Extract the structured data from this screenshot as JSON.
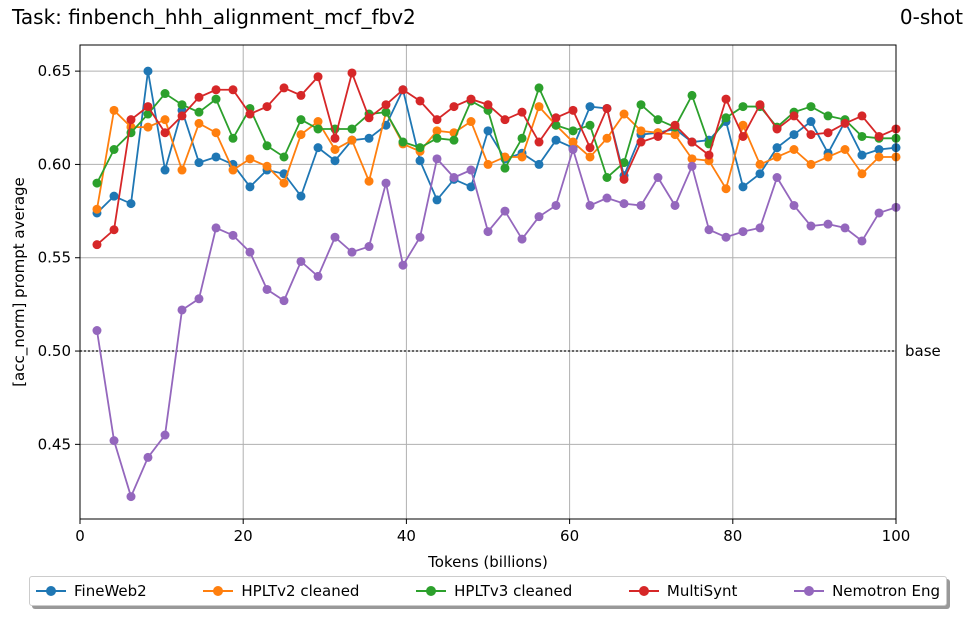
{
  "header": {
    "title": "Task: finbench_hhh_alignment_mcf_fbv2",
    "shot": "0-shot"
  },
  "chart_data": {
    "type": "line",
    "title": "Task: finbench_hhh_alignment_mcf_fbv2",
    "subtitle": "0-shot",
    "xlabel": "Tokens (billions)",
    "ylabel": "[acc_norm] prompt average",
    "xlim": [
      0,
      100
    ],
    "ylim": [
      0.41,
      0.664
    ],
    "xticks": [
      0,
      20,
      40,
      60,
      80,
      100
    ],
    "yticks": [
      0.45,
      0.5,
      0.55,
      0.6,
      0.65
    ],
    "grid": true,
    "legend_position": "bottom",
    "baseline": {
      "value": 0.5,
      "label": "base",
      "style": "dotted"
    },
    "x": [
      2.08,
      4.17,
      6.25,
      8.33,
      10.42,
      12.5,
      14.58,
      16.67,
      18.75,
      20.83,
      22.92,
      25.0,
      27.08,
      29.17,
      31.25,
      33.33,
      35.42,
      37.5,
      39.58,
      41.67,
      43.75,
      45.83,
      47.92,
      50.0,
      52.08,
      54.17,
      56.25,
      58.33,
      60.42,
      62.5,
      64.58,
      66.67,
      68.75,
      70.83,
      72.92,
      75.0,
      77.08,
      79.17,
      81.25,
      83.33,
      85.42,
      87.5,
      89.58,
      91.67,
      93.75,
      95.83,
      97.92,
      100.0
    ],
    "series": [
      {
        "name": "FineWeb2",
        "color": "#1f77b4",
        "values": [
          0.574,
          0.583,
          0.579,
          0.65,
          0.597,
          0.629,
          0.601,
          0.604,
          0.6,
          0.588,
          0.597,
          0.595,
          0.583,
          0.609,
          0.602,
          0.613,
          0.614,
          0.621,
          0.64,
          0.602,
          0.581,
          0.592,
          0.588,
          0.618,
          0.603,
          0.606,
          0.6,
          0.613,
          0.609,
          0.631,
          0.63,
          0.594,
          0.616,
          0.617,
          0.619,
          0.612,
          0.613,
          0.623,
          0.588,
          0.595,
          0.609,
          0.616,
          0.623,
          0.606,
          0.623,
          0.605,
          0.608,
          0.609
        ]
      },
      {
        "name": "HPLTv2 cleaned",
        "color": "#ff7f0e",
        "values": [
          0.576,
          0.629,
          0.62,
          0.62,
          0.624,
          0.597,
          0.622,
          0.617,
          0.597,
          0.603,
          0.599,
          0.59,
          0.616,
          0.623,
          0.608,
          0.613,
          0.591,
          0.628,
          0.611,
          0.607,
          0.618,
          0.617,
          0.623,
          0.6,
          0.604,
          0.604,
          0.631,
          0.621,
          0.612,
          0.604,
          0.614,
          0.627,
          0.618,
          0.617,
          0.616,
          0.603,
          0.602,
          0.587,
          0.621,
          0.6,
          0.604,
          0.608,
          0.6,
          0.604,
          0.608,
          0.595,
          0.604,
          0.604
        ]
      },
      {
        "name": "HPLTv3 cleaned",
        "color": "#2ca02c",
        "values": [
          0.59,
          0.608,
          0.617,
          0.627,
          0.638,
          0.632,
          0.628,
          0.635,
          0.614,
          0.63,
          0.61,
          0.604,
          0.624,
          0.619,
          0.619,
          0.619,
          0.627,
          0.628,
          0.612,
          0.609,
          0.614,
          0.613,
          0.634,
          0.629,
          0.598,
          0.614,
          0.641,
          0.621,
          0.618,
          0.621,
          0.593,
          0.601,
          0.632,
          0.624,
          0.62,
          0.637,
          0.611,
          0.625,
          0.631,
          0.631,
          0.62,
          0.628,
          0.631,
          0.626,
          0.624,
          0.615,
          0.614,
          0.614
        ]
      },
      {
        "name": "MultiSynt",
        "color": "#d62728",
        "values": [
          0.557,
          0.565,
          0.624,
          0.631,
          0.617,
          0.626,
          0.636,
          0.64,
          0.64,
          0.627,
          0.631,
          0.641,
          0.637,
          0.647,
          0.614,
          0.649,
          0.625,
          0.632,
          0.64,
          0.634,
          0.624,
          0.631,
          0.635,
          0.632,
          0.624,
          0.628,
          0.612,
          0.625,
          0.629,
          0.609,
          0.63,
          0.592,
          0.612,
          0.615,
          0.621,
          0.612,
          0.605,
          0.635,
          0.615,
          0.632,
          0.619,
          0.626,
          0.616,
          0.617,
          0.622,
          0.626,
          0.615,
          0.619
        ]
      },
      {
        "name": "Nemotron Eng",
        "color": "#9467bd",
        "values": [
          0.511,
          0.452,
          0.422,
          0.443,
          0.455,
          0.522,
          0.528,
          0.566,
          0.562,
          0.553,
          0.533,
          0.527,
          0.548,
          0.54,
          0.561,
          0.553,
          0.556,
          0.59,
          0.546,
          0.561,
          0.603,
          0.593,
          0.597,
          0.564,
          0.575,
          0.56,
          0.572,
          0.578,
          0.608,
          0.578,
          0.582,
          0.579,
          0.578,
          0.593,
          0.578,
          0.599,
          0.565,
          0.561,
          0.564,
          0.566,
          0.593,
          0.578,
          0.567,
          0.568,
          0.566,
          0.559,
          0.574,
          0.577
        ]
      }
    ]
  },
  "legend": {
    "items": [
      {
        "label": "FineWeb2",
        "color": "#1f77b4"
      },
      {
        "label": "HPLTv2 cleaned",
        "color": "#ff7f0e"
      },
      {
        "label": "HPLTv3 cleaned",
        "color": "#2ca02c"
      },
      {
        "label": "MultiSynt",
        "color": "#d62728"
      },
      {
        "label": "Nemotron Eng",
        "color": "#9467bd"
      }
    ]
  }
}
